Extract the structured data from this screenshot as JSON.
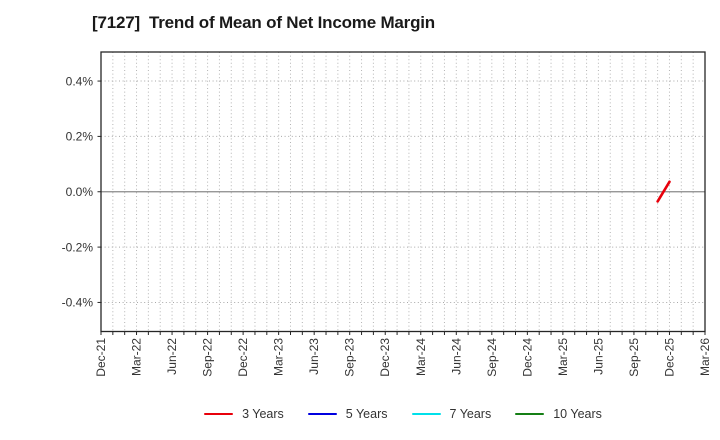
{
  "chart_data": {
    "type": "line",
    "title": "[7127]  Trend of Mean of Net Income Margin",
    "xlabel": "",
    "ylabel": "",
    "x_months": 51,
    "x_tick_labels": [
      "Dec-21",
      "Mar-22",
      "Jun-22",
      "Sep-22",
      "Dec-22",
      "Mar-23",
      "Jun-23",
      "Sep-23",
      "Dec-23",
      "Mar-24",
      "Jun-24",
      "Sep-24",
      "Dec-24",
      "Mar-25",
      "Jun-25",
      "Sep-25",
      "Dec-25",
      "Mar-26"
    ],
    "y_ticks": [
      {
        "label": "0.4%",
        "value": 0.4
      },
      {
        "label": "0.2%",
        "value": 0.2
      },
      {
        "label": "0.0%",
        "value": 0.0
      },
      {
        "label": "-0.2%",
        "value": -0.2
      },
      {
        "label": "-0.4%",
        "value": -0.4
      }
    ],
    "ylim": [
      -0.505,
      0.505
    ],
    "grid": "dotted",
    "grid_color_vertical": "#b4b4b4",
    "grid_color_horizontal": "#a8a8a8",
    "zero_line_color": "#8a8a8a",
    "axis_color": "#262626",
    "legend_position": "bottom",
    "series": [
      {
        "name": "3 Years",
        "color": "#e8000b",
        "points": [
          {
            "date": "Nov-25",
            "month_index": 47,
            "value": -0.035
          },
          {
            "date": "Dec-25",
            "month_index": 48,
            "value": 0.036
          }
        ]
      },
      {
        "name": "5 Years",
        "color": "#0000e0",
        "points": []
      },
      {
        "name": "7 Years",
        "color": "#00e0ea",
        "points": []
      },
      {
        "name": "10 Years",
        "color": "#157f15",
        "points": []
      }
    ]
  }
}
